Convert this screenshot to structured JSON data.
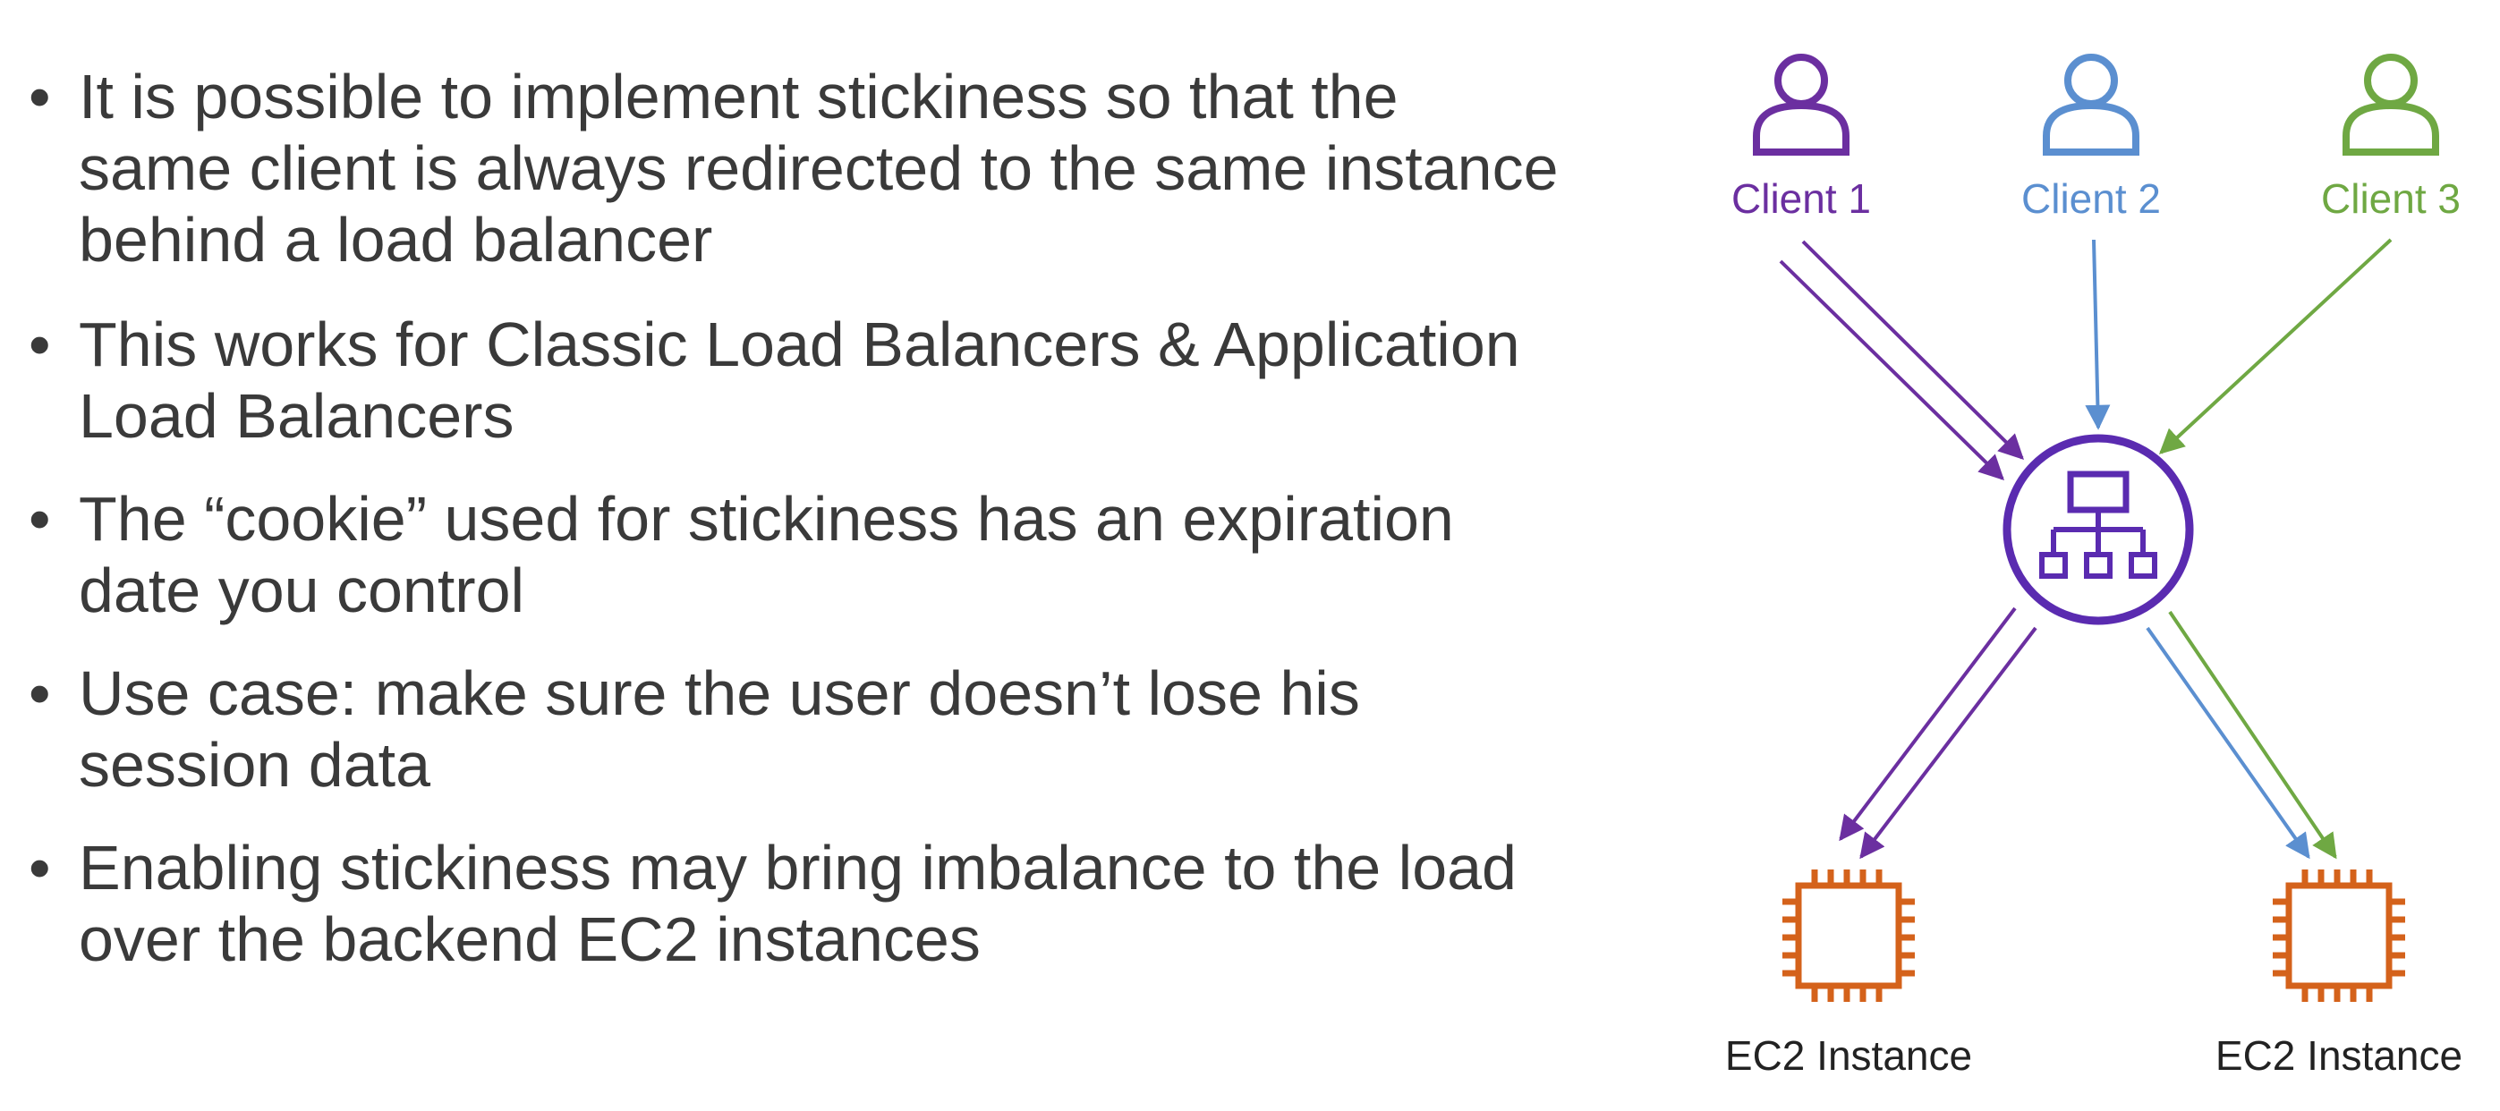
{
  "bullets": [
    {
      "text": "It is possible to implement stickiness so that the same client is always redirected to the same instance behind a load balancer"
    },
    {
      "text": "This works for Classic Load Balancers & Application Load Balancers"
    },
    {
      "text": "The “cookie” used for stickiness has an expiration date you control"
    },
    {
      "text": "Use case: make sure the user doesn’t lose his session data"
    },
    {
      "text": "Enabling stickiness may bring imbalance to the load over the backend EC2 instances"
    }
  ],
  "diagram": {
    "clients": [
      {
        "label": "Client 1",
        "color": "#6b2fa0",
        "icon": "user-icon"
      },
      {
        "label": "Client 2",
        "color": "#5b8fd0",
        "icon": "user-icon"
      },
      {
        "label": "Client 3",
        "color": "#6fa843",
        "icon": "user-icon"
      }
    ],
    "load_balancer": {
      "icon": "load-balancer-icon",
      "color": "#5a2bb0"
    },
    "instances": [
      {
        "label": "EC2 Instance",
        "icon": "ec2-chip-icon",
        "color": "#d4621b"
      },
      {
        "label": "EC2 Instance",
        "icon": "ec2-chip-icon",
        "color": "#d4621b"
      }
    ]
  }
}
